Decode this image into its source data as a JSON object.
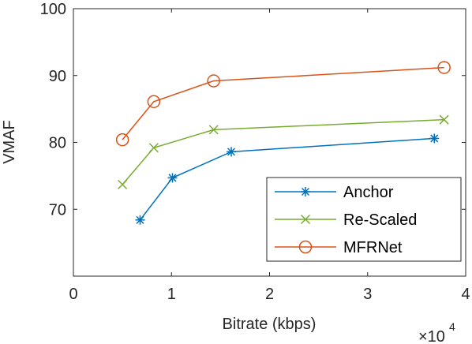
{
  "chart_data": {
    "type": "line",
    "xlabel": "Bitrate (kbps)",
    "ylabel": "VMAF",
    "x_exponent_base": "×10",
    "x_exponent_power": "4",
    "xlim": [
      0,
      4
    ],
    "ylim": [
      60,
      100
    ],
    "xticks": [
      0,
      1,
      2,
      3,
      4
    ],
    "yticks": [
      70,
      80,
      90,
      100
    ],
    "grid": false,
    "legend_position": "bottom-right",
    "series": [
      {
        "name": "Anchor",
        "color": "#0072BD",
        "marker": "asterisk",
        "x": [
          0.68,
          1.01,
          1.61,
          3.68
        ],
        "y": [
          68.4,
          74.7,
          78.6,
          80.6
        ]
      },
      {
        "name": "Re-Scaled",
        "color": "#77AC30",
        "marker": "cross",
        "x": [
          0.5,
          0.82,
          1.43,
          3.78
        ],
        "y": [
          73.7,
          79.2,
          81.9,
          83.4
        ]
      },
      {
        "name": "MFRNet",
        "color": "#D95319",
        "marker": "circle",
        "x": [
          0.5,
          0.82,
          1.43,
          3.78
        ],
        "y": [
          80.4,
          86.1,
          89.2,
          91.2
        ]
      }
    ]
  }
}
